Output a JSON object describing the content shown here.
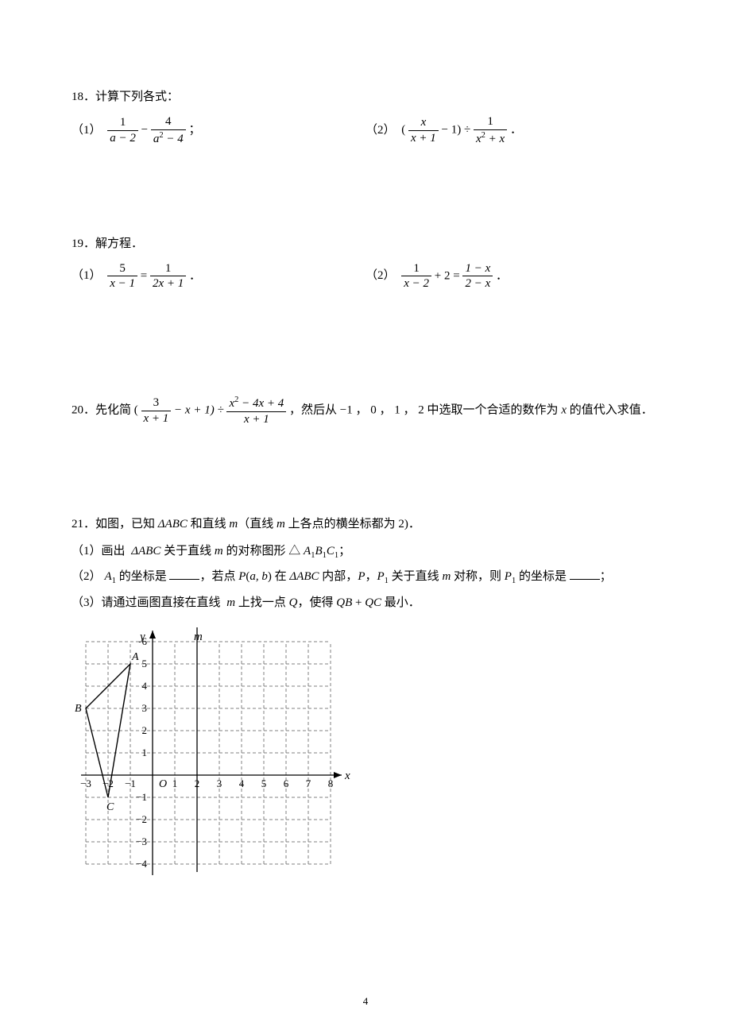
{
  "page_number": "4",
  "problems": {
    "p18": {
      "num": "18",
      "title": "．计算下列各式：",
      "p1_label": "（1）",
      "p1_n1": "1",
      "p1_d1": "a − 2",
      "p1_minus": " − ",
      "p1_n2": "4",
      "p1_d2_a": "a",
      "p1_d2_sup": "2",
      "p1_d2_b": " − 4",
      "p1_tail": "；",
      "p2_label": "（2）",
      "p2_lp": " (",
      "p2_n1": "x",
      "p2_d1": "x + 1",
      "p2_m1": " − 1) ÷ ",
      "p2_n2": "1",
      "p2_d2_a": "x",
      "p2_d2_sup": "2",
      "p2_d2_b": " + x",
      "p2_tail": "．"
    },
    "p19": {
      "num": "19",
      "title": "．解方程．",
      "p1_label": "（1）",
      "p1_n1": "5",
      "p1_d1": "x − 1",
      "p1_eq": " = ",
      "p1_n2": "1",
      "p1_d2": "2x + 1",
      "p1_tail": "．",
      "p2_label": "（2）",
      "p2_n1": "1",
      "p2_d1": "x − 2",
      "p2_m1": " + 2 = ",
      "p2_n2": "1 − x",
      "p2_d2": "2 − x",
      "p2_tail": "．"
    },
    "p20": {
      "num": "20",
      "text_a": "．先化简",
      "lp": " (",
      "n1": "3",
      "d1": "x + 1",
      "m1": " − x + 1) ÷ ",
      "n2_a": "x",
      "n2_sup": "2",
      "n2_b": " − 4x + 4",
      "d2": "x + 1",
      "text_b": "，然后从",
      "m2": " −1",
      "text_c": "，",
      "m3": "0",
      "text_d": "，",
      "m4": "1",
      "text_e": "，",
      "m5": "2",
      "text_f": " 中选取一个合适的数作为 ",
      "m6": "x",
      "text_g": " 的值代入求值．"
    },
    "p21": {
      "num": "21",
      "text_a": "．如图，已知 ",
      "tri": "ΔABC",
      "text_b": " 和直线 ",
      "m": "m",
      "text_c": "（直线 ",
      "text_d": " 上各点的横坐标都为 ",
      "two": "2)",
      "text_e": "．",
      "q1_label": "（1）画出 ",
      "q1_a": "ΔABC",
      "q1_b": " 关于直线 ",
      "q1_c": " 的对称图形 △ ",
      "q1_A1": "A",
      "q1_s1": "1",
      "q1_B1": "B",
      "q1_C1": "C",
      "q1_tail": "；",
      "q2_label": "（2）",
      "q2_A1": "A",
      "q2_s1": "1",
      "q2_a": " 的坐标是 ",
      "q2_b": "，若点 ",
      "q2_P": "P",
      "q2_lp": "(",
      "q2_ab": "a, b",
      "q2_rp": ")",
      "q2_c": " 在 ",
      "q2_tri": "ΔABC",
      "q2_d": " 内部，",
      "q2_P2": "P",
      "q2_comma": "，",
      "q2_P1": "P",
      "q2_s1b": "1",
      "q2_e": " 关于直线 ",
      "q2_f": " 对称，则 ",
      "q2_g": " 的坐标是 ",
      "q2_tail": "；",
      "q3_label": "（3）请通过画图直接在直线 ",
      "q3_a": " 上找一点 ",
      "q3_Q": "Q",
      "q3_b": "，使得 ",
      "q3_QB": "QB",
      "q3_plus": " + ",
      "q3_QC": "QC",
      "q3_c": " 最小．"
    }
  },
  "graph": {
    "colors": {
      "grid": "#808080",
      "axis": "#000000",
      "text": "#000000",
      "triangle": "#000000"
    },
    "unit": 28,
    "x_range": [
      -3,
      8
    ],
    "y_range": [
      -4,
      6
    ],
    "origin": "O",
    "xlabel": "x",
    "ylabel": "y",
    "mlabel": "m",
    "m_x": 2,
    "points": {
      "A": [
        -1,
        5
      ],
      "B": [
        -3,
        3
      ],
      "C": [
        -2,
        -1
      ]
    },
    "x_ticks": [
      -3,
      -2,
      -1,
      1,
      2,
      3,
      4,
      5,
      6,
      7,
      8
    ],
    "y_ticks": [
      -4,
      -3,
      -2,
      -1,
      1,
      2,
      3,
      4,
      5,
      6
    ]
  }
}
